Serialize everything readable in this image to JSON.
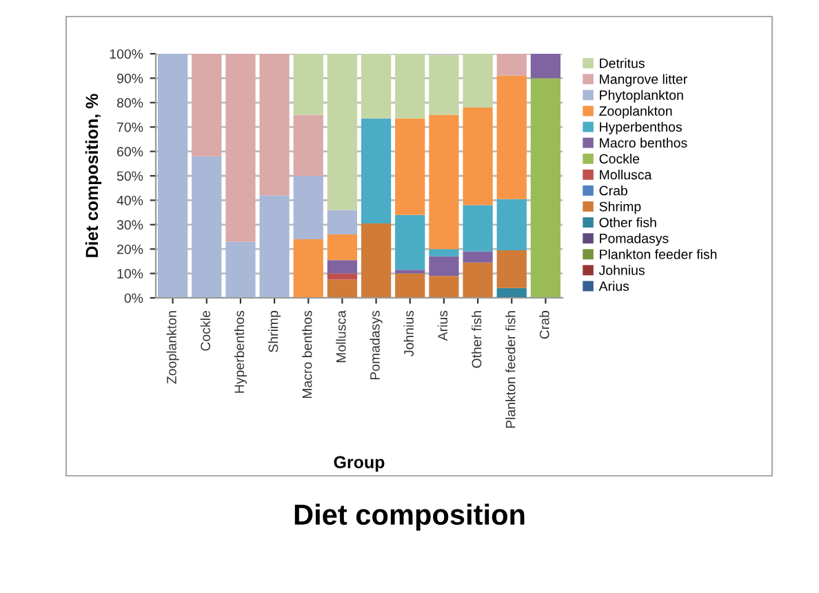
{
  "chart_data": {
    "type": "bar",
    "title": "Diet composition",
    "xlabel": "Group",
    "ylabel": "Diet composition, %",
    "categories": [
      "Zooplankton",
      "Cockle",
      "Hyperbenthos",
      "Shrimp",
      "Macro benthos",
      "Mollusca",
      "Pomadasys",
      "Johnius",
      "Arius",
      "Other fish",
      "Plankton feeder fish",
      "Crab"
    ],
    "stacked": true,
    "ylim": [
      0,
      100
    ],
    "yticks": [
      {
        "value": 0,
        "label": "0%"
      },
      {
        "value": 10,
        "label": "10%"
      },
      {
        "value": 20,
        "label": "20%"
      },
      {
        "value": 30,
        "label": "30%"
      },
      {
        "value": 40,
        "label": "40%"
      },
      {
        "value": 50,
        "label": "50%"
      },
      {
        "value": 60,
        "label": "60%"
      },
      {
        "value": 70,
        "label": "70%"
      },
      {
        "value": 80,
        "label": "80%"
      },
      {
        "value": 90,
        "label": "90%"
      },
      {
        "value": 100,
        "label": "100%"
      }
    ],
    "grid": "y",
    "legend": "right",
    "series": [
      {
        "name": "Arius",
        "color": "#376092",
        "values": [
          null,
          null,
          null,
          null,
          null,
          null,
          null,
          null,
          null,
          null,
          null,
          null
        ]
      },
      {
        "name": "Johnius",
        "color": "#953735",
        "values": [
          null,
          null,
          null,
          null,
          null,
          null,
          null,
          null,
          null,
          null,
          null,
          null
        ]
      },
      {
        "name": "Plankton feeder fish",
        "color": "#77933c",
        "values": [
          null,
          null,
          null,
          null,
          null,
          null,
          null,
          null,
          null,
          null,
          null,
          null
        ]
      },
      {
        "name": "Pomadasys",
        "color": "#604a7b",
        "values": [
          null,
          null,
          null,
          null,
          null,
          null,
          null,
          null,
          null,
          null,
          null,
          null
        ]
      },
      {
        "name": "Other fish",
        "color": "#31859c",
        "values": [
          null,
          null,
          null,
          null,
          null,
          null,
          null,
          null,
          null,
          null,
          4,
          null
        ]
      },
      {
        "name": "Shrimp",
        "color": "#d07c38",
        "values": [
          null,
          null,
          null,
          null,
          null,
          7.5,
          30.5,
          10,
          9,
          14.5,
          15.5,
          null
        ]
      },
      {
        "name": "Crab",
        "color": "#4f81bd",
        "values": [
          null,
          null,
          null,
          null,
          null,
          null,
          null,
          null,
          null,
          null,
          null,
          null
        ]
      },
      {
        "name": "Mollusca",
        "color": "#c0504d",
        "values": [
          null,
          null,
          null,
          null,
          null,
          2.5,
          null,
          null,
          null,
          null,
          null,
          null
        ]
      },
      {
        "name": "Cockle",
        "color": "#9bbb59",
        "values": [
          null,
          null,
          null,
          null,
          null,
          null,
          null,
          null,
          null,
          null,
          null,
          90
        ]
      },
      {
        "name": "Macro benthos",
        "color": "#8064a2",
        "values": [
          null,
          null,
          null,
          null,
          null,
          5.5,
          null,
          1.5,
          8,
          4.5,
          null,
          10
        ]
      },
      {
        "name": "Hyperbenthos",
        "color": "#4bacc6",
        "values": [
          null,
          null,
          null,
          null,
          null,
          null,
          43,
          22.5,
          3,
          19,
          21,
          null
        ]
      },
      {
        "name": "Zooplankton",
        "color": "#f79646",
        "values": [
          null,
          null,
          null,
          null,
          24,
          10.5,
          null,
          39.5,
          55,
          40,
          50.5,
          null
        ]
      },
      {
        "name": "Phytoplankton",
        "color": "#a9b8d7",
        "values": [
          100,
          58,
          23,
          42,
          26,
          10,
          null,
          null,
          null,
          null,
          null,
          null
        ]
      },
      {
        "name": "Mangrove litter",
        "color": "#dba9a8",
        "values": [
          null,
          42,
          77,
          58,
          25,
          null,
          null,
          null,
          null,
          null,
          9,
          null
        ]
      },
      {
        "name": "Detritus",
        "color": "#c4d6a4",
        "values": [
          null,
          null,
          null,
          null,
          25,
          64,
          26.5,
          26.5,
          24.5,
          22,
          null,
          null
        ]
      }
    ]
  }
}
